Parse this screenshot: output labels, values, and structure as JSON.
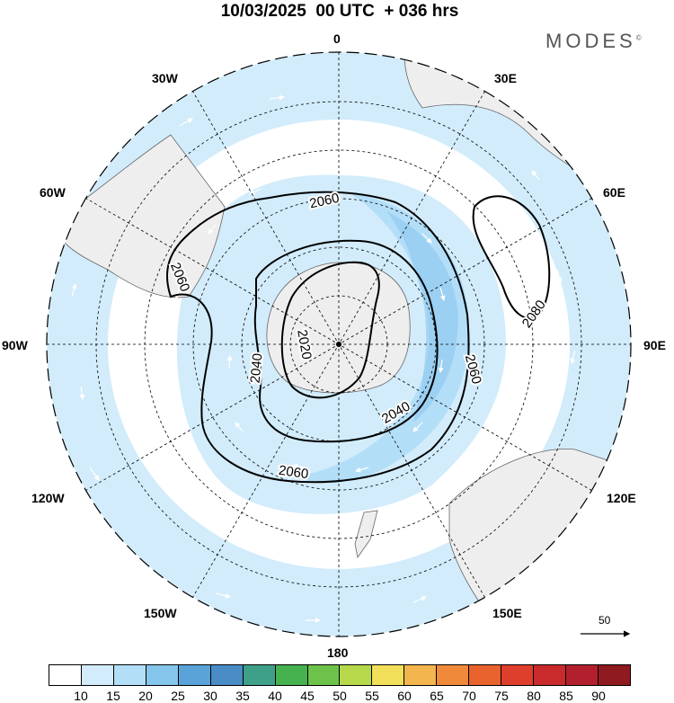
{
  "title": "10/03/2025  00 UTC  + 036 hrs",
  "brand": "MODES",
  "brand_mark": "©",
  "longitude_labels": [
    {
      "id": "lon-0",
      "text": "0"
    },
    {
      "id": "lon-30e",
      "text": "30E"
    },
    {
      "id": "lon-60e",
      "text": "60E"
    },
    {
      "id": "lon-90e",
      "text": "90E"
    },
    {
      "id": "lon-120e",
      "text": "120E"
    },
    {
      "id": "lon-150e",
      "text": "150E"
    },
    {
      "id": "lon-180",
      "text": "180"
    },
    {
      "id": "lon-150w",
      "text": "150W"
    },
    {
      "id": "lon-120w",
      "text": "120W"
    },
    {
      "id": "lon-90w",
      "text": "90W"
    },
    {
      "id": "lon-60w",
      "text": "60W"
    },
    {
      "id": "lon-30w",
      "text": "30W"
    }
  ],
  "contour_labels": [
    "2060",
    "2060",
    "2020",
    "2040",
    "2060",
    "2040",
    "2060",
    "2080"
  ],
  "reference_vector": "50",
  "colorbar": {
    "colors": [
      "#ffffff",
      "#d2ecfb",
      "#b3def8",
      "#86c5ec",
      "#5aa3d8",
      "#4a8cc6",
      "#3fa08a",
      "#45b14f",
      "#6cc24a",
      "#b6d84a",
      "#f3e05a",
      "#f3b54e",
      "#ef8a3a",
      "#e8632e",
      "#de3e2c",
      "#c92a2c",
      "#b3202d",
      "#8f1a1f"
    ],
    "ticks": [
      "10",
      "15",
      "20",
      "25",
      "30",
      "35",
      "40",
      "45",
      "50",
      "55",
      "60",
      "65",
      "70",
      "75",
      "80",
      "85",
      "90"
    ]
  },
  "colors": {
    "land": "#eeeeee",
    "wind_light": "#d2ecfb",
    "wind_mid": "#b3def8",
    "wind_strong": "#86c5ec",
    "grid": "#000000"
  }
}
